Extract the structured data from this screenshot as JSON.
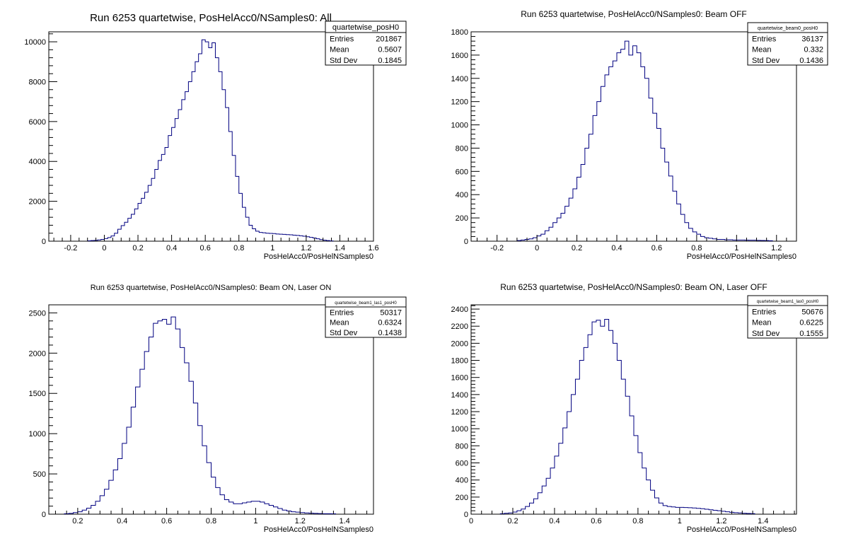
{
  "chart_data": [
    {
      "type": "histogram",
      "title": "Run 6253 quartetwise, PosHelAcc0/NSamples0: All",
      "xlabel": "PosHelAcc0/PosHelNSamples0",
      "xlim": [
        -0.33,
        1.6
      ],
      "ylim": [
        0,
        10500
      ],
      "xticks": [
        "-0.2",
        "0",
        "0.2",
        "0.4",
        "0.6",
        "0.8",
        "1",
        "1.2",
        "1.4",
        "1.6"
      ],
      "yticks": [
        "0",
        "2000",
        "4000",
        "6000",
        "8000",
        "10000"
      ],
      "stats": {
        "name": "quartetwise_posH0",
        "entries": "201867",
        "mean": "0.5607",
        "std_dev": "0.1845"
      },
      "bins": {
        "start": -0.1,
        "width": 0.02,
        "counts": [
          20,
          30,
          40,
          60,
          90,
          130,
          180,
          260,
          400,
          600,
          780,
          950,
          1150,
          1350,
          1620,
          1900,
          2150,
          2450,
          2800,
          3150,
          3600,
          4050,
          4350,
          4700,
          5300,
          5700,
          6150,
          6600,
          7100,
          7500,
          8000,
          8500,
          9000,
          9400,
          10100,
          10000,
          9700,
          9950,
          9200,
          8500,
          7600,
          6700,
          5500,
          4300,
          3250,
          2400,
          1700,
          1200,
          800,
          620,
          500,
          440,
          420,
          400,
          390,
          380,
          360,
          350,
          340,
          330,
          320,
          300,
          290,
          270,
          250,
          220,
          190,
          160,
          120,
          80,
          50,
          30,
          15
        ]
      },
      "line_color": "#000080"
    },
    {
      "type": "histogram",
      "title": "Run 6253 quartetwise, PosHelAcc0/NSamples0: Beam OFF",
      "xlabel": "PosHelAcc0/PosHelNSamples0",
      "xlim": [
        -0.33,
        1.3
      ],
      "ylim": [
        0,
        1800
      ],
      "xticks": [
        "-0.2",
        "0",
        "0.2",
        "0.4",
        "0.6",
        "0.8",
        "1",
        "1.2"
      ],
      "yticks": [
        "0",
        "200",
        "400",
        "600",
        "800",
        "1000",
        "1200",
        "1400",
        "1600",
        "1800"
      ],
      "stats": {
        "name": "quartetwise_beam0_posH0",
        "entries": "36137",
        "mean": "0.332",
        "std_dev": "0.1436"
      },
      "bins": {
        "start": -0.1,
        "width": 0.02,
        "counts": [
          5,
          10,
          15,
          20,
          30,
          45,
          60,
          90,
          120,
          160,
          200,
          240,
          300,
          370,
          450,
          550,
          660,
          800,
          920,
          1080,
          1200,
          1330,
          1430,
          1500,
          1550,
          1620,
          1650,
          1720,
          1600,
          1680,
          1620,
          1500,
          1400,
          1230,
          1100,
          970,
          800,
          680,
          560,
          430,
          320,
          230,
          160,
          110,
          80,
          60,
          40,
          30,
          25,
          20,
          15,
          15,
          12,
          12,
          10,
          10,
          10,
          9,
          8,
          8,
          7,
          6,
          5,
          4
        ]
      },
      "line_color": "#000080"
    },
    {
      "type": "histogram",
      "title": "Run 6253 quartetwise, PosHelAcc0/NSamples0: Beam ON, Laser ON",
      "xlabel": "PosHelAcc0/PosHelNSamples0",
      "xlim": [
        0.07,
        1.53
      ],
      "ylim": [
        0,
        2600
      ],
      "xticks": [
        "0.2",
        "0.4",
        "0.6",
        "0.8",
        "1",
        "1.2",
        "1.4"
      ],
      "yticks": [
        "0",
        "500",
        "1000",
        "1500",
        "2000",
        "2500"
      ],
      "stats": {
        "name": "quartetwise_beam1_las1_posH0",
        "entries": "50317",
        "mean": "0.6324",
        "std_dev": "0.1438"
      },
      "bins": {
        "start": 0.14,
        "width": 0.02,
        "counts": [
          5,
          10,
          20,
          30,
          50,
          75,
          110,
          160,
          230,
          310,
          420,
          550,
          690,
          880,
          1080,
          1330,
          1580,
          1800,
          2020,
          2200,
          2370,
          2400,
          2420,
          2360,
          2450,
          2300,
          2070,
          1880,
          1650,
          1380,
          1100,
          850,
          640,
          460,
          330,
          240,
          180,
          150,
          130,
          130,
          140,
          150,
          160,
          160,
          150,
          130,
          110,
          90,
          70,
          50,
          40,
          30,
          25,
          20,
          15,
          12,
          10,
          8,
          6,
          5,
          4
        ]
      },
      "line_color": "#000080"
    },
    {
      "type": "histogram",
      "title": "Run 6253 quartetwise, PosHelAcc0/NSamples0: Beam ON, Laser OFF",
      "xlabel": "PosHelAcc0/PosHelNSamples0",
      "xlim": [
        0,
        1.56
      ],
      "ylim": [
        0,
        2450
      ],
      "xticks": [
        "0",
        "0.2",
        "0.4",
        "0.6",
        "0.8",
        "1",
        "1.2",
        "1.4"
      ],
      "yticks": [
        "0",
        "200",
        "400",
        "600",
        "800",
        "1000",
        "1200",
        "1400",
        "1600",
        "1800",
        "2000",
        "2200",
        "2400"
      ],
      "stats": {
        "name": "quartetwise_beam1_las0_posH0",
        "entries": "50676",
        "mean": "0.6225",
        "std_dev": "0.1555"
      },
      "bins": {
        "start": 0.14,
        "width": 0.02,
        "counts": [
          5,
          10,
          15,
          25,
          40,
          60,
          90,
          130,
          180,
          250,
          330,
          420,
          540,
          680,
          830,
          1010,
          1200,
          1400,
          1580,
          1800,
          1950,
          2100,
          2250,
          2270,
          2200,
          2280,
          2150,
          2000,
          1800,
          1580,
          1380,
          1150,
          920,
          720,
          540,
          400,
          280,
          190,
          130,
          100,
          90,
          85,
          80,
          80,
          78,
          76,
          72,
          68,
          64,
          58,
          52,
          46,
          40,
          34,
          28,
          22,
          18,
          14,
          10,
          8,
          6
        ]
      },
      "line_color": "#000080"
    }
  ],
  "stats_labels": {
    "entries": "Entries",
    "mean": "Mean",
    "std_dev": "Std Dev"
  }
}
